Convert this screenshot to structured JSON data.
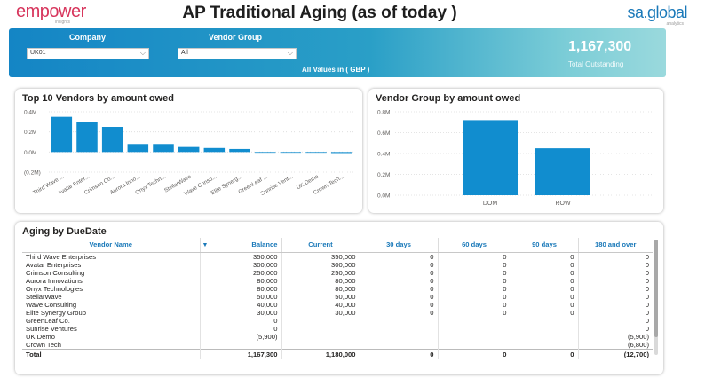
{
  "header": {
    "logo_left": "empower",
    "logo_left_tag": "insights",
    "title": "AP Traditional Aging (as of today )",
    "logo_right": "sa.global",
    "logo_right_tag": "analytics"
  },
  "filters": {
    "company_label": "Company",
    "company_value": "UK01",
    "vendor_group_label": "Vendor Group",
    "vendor_group_value": "All",
    "values_note": "All Values in ( GBP )"
  },
  "kpi": {
    "total_value": "1,167,300",
    "total_caption": "Total Outstanding"
  },
  "colors": {
    "bar": "#118dcf",
    "accent": "#1a79b9"
  },
  "chart_data": [
    {
      "type": "bar",
      "title": "Top 10 Vendors by amount owed",
      "categories": [
        "Third Wave ...",
        "Avatar Enter...",
        "Crimson Co...",
        "Aurora Inno...",
        "Onyx Techn...",
        "StellarWave",
        "Wave Consu...",
        "Elite Synerg...",
        "GreenLeaf ...",
        "Sunrise Vent...",
        "UK Demo",
        "Crown Tech..."
      ],
      "values": [
        0.35,
        0.3,
        0.25,
        0.08,
        0.08,
        0.05,
        0.04,
        0.03,
        0.0,
        0.0,
        -0.0059,
        -0.01
      ],
      "yticks": [
        "0.4M",
        "0.2M",
        "0.0M",
        "(0.2M)"
      ],
      "ytick_values": [
        0.4,
        0.2,
        0.0,
        -0.2
      ],
      "ylim": [
        -0.2,
        0.4
      ],
      "grid": true
    },
    {
      "type": "bar",
      "title": "Vendor Group by amount owed",
      "categories": [
        "DOM",
        "ROW"
      ],
      "values": [
        0.72,
        0.45
      ],
      "yticks": [
        "0.8M",
        "0.6M",
        "0.4M",
        "0.2M",
        "0.0M"
      ],
      "ytick_values": [
        0.8,
        0.6,
        0.4,
        0.2,
        0.0
      ],
      "ylim": [
        0,
        0.8
      ],
      "grid": true
    }
  ],
  "table": {
    "title": "Aging by DueDate",
    "columns": [
      "Vendor Name",
      "Balance",
      "Current",
      "30 days",
      "60 days",
      "90 days",
      "180 and over"
    ],
    "rows": [
      [
        "Third Wave Enterprises",
        "350,000",
        "350,000",
        "0",
        "0",
        "0",
        "0"
      ],
      [
        "Avatar Enterprises",
        "300,000",
        "300,000",
        "0",
        "0",
        "0",
        "0"
      ],
      [
        "Crimson Consulting",
        "250,000",
        "250,000",
        "0",
        "0",
        "0",
        "0"
      ],
      [
        "Aurora Innovations",
        "80,000",
        "80,000",
        "0",
        "0",
        "0",
        "0"
      ],
      [
        "Onyx Technologies",
        "80,000",
        "80,000",
        "0",
        "0",
        "0",
        "0"
      ],
      [
        "StellarWave",
        "50,000",
        "50,000",
        "0",
        "0",
        "0",
        "0"
      ],
      [
        "Wave Consulting",
        "40,000",
        "40,000",
        "0",
        "0",
        "0",
        "0"
      ],
      [
        "Elite Synergy Group",
        "30,000",
        "30,000",
        "0",
        "0",
        "0",
        "0"
      ],
      [
        "GreenLeaf Co.",
        "0",
        "",
        "",
        "",
        "",
        "0"
      ],
      [
        "Sunrise Ventures",
        "0",
        "",
        "",
        "",
        "",
        "0"
      ],
      [
        "UK Demo",
        "(5,900)",
        "",
        "",
        "",
        "",
        "(5,900)"
      ],
      [
        "Crown Tech",
        "",
        "",
        "",
        "",
        "",
        "(6,800)"
      ]
    ],
    "total": [
      "Total",
      "1,167,300",
      "1,180,000",
      "0",
      "0",
      "0",
      "(12,700)"
    ]
  }
}
